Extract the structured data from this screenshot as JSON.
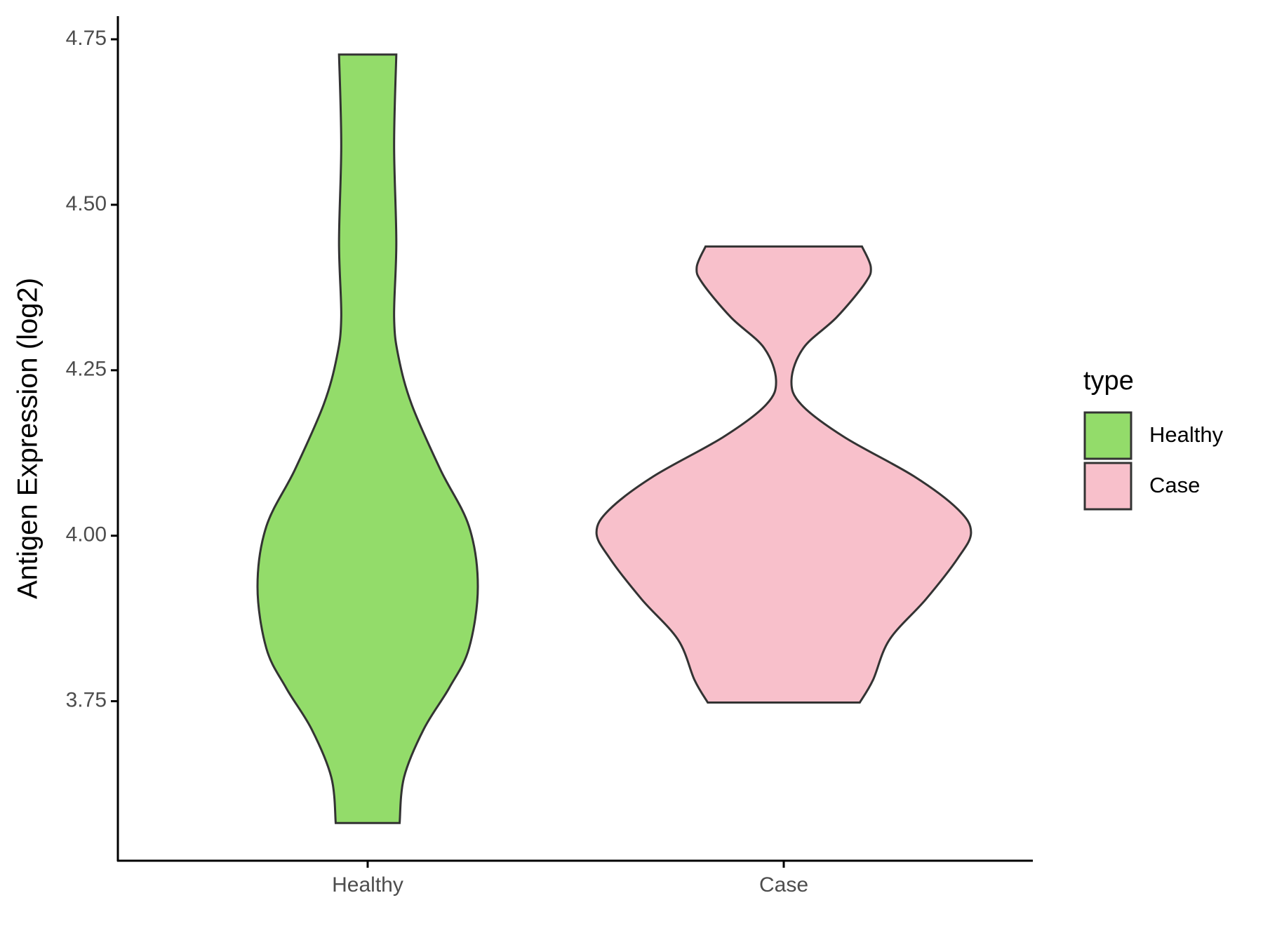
{
  "chart_data": {
    "type": "violin",
    "y_label": "Antigen Expression (log2)",
    "categories": [
      "Healthy",
      "Case"
    ],
    "legend_title": "type",
    "legend_position": "right",
    "ylim": [
      3.509,
      4.785
    ],
    "yticks": [
      3.75,
      {
        "value": 4,
        "label": "4.00"
      },
      4.25,
      {
        "value": 4.5,
        "label": "4.50"
      },
      4.75
    ],
    "series": [
      {
        "name": "Healthy",
        "color": "#93dc6a",
        "y": [
          3.566,
          3.635,
          3.708,
          3.77,
          3.83,
          3.923,
          4.014,
          4.1,
          4.198,
          4.27,
          4.33,
          4.443,
          4.59,
          4.727
        ],
        "density": [
          0.29,
          0.33,
          0.51,
          0.74,
          0.92,
          1,
          0.92,
          0.66,
          0.4,
          0.28,
          0.24,
          0.26,
          0.24,
          0.26
        ]
      },
      {
        "name": "Case",
        "color": "#f8c0cb",
        "y": [
          3.748,
          3.782,
          3.843,
          3.904,
          3.966,
          4.005,
          4.04,
          4.09,
          4.149,
          4.198,
          4.235,
          4.284,
          4.33,
          4.382,
          4.406,
          4.437
        ],
        "density": [
          0.69,
          0.81,
          0.96,
          1.29,
          1.58,
          1.7,
          1.58,
          1.18,
          0.55,
          0.16,
          0.07,
          0.18,
          0.48,
          0.74,
          0.79,
          0.71
        ]
      }
    ]
  }
}
